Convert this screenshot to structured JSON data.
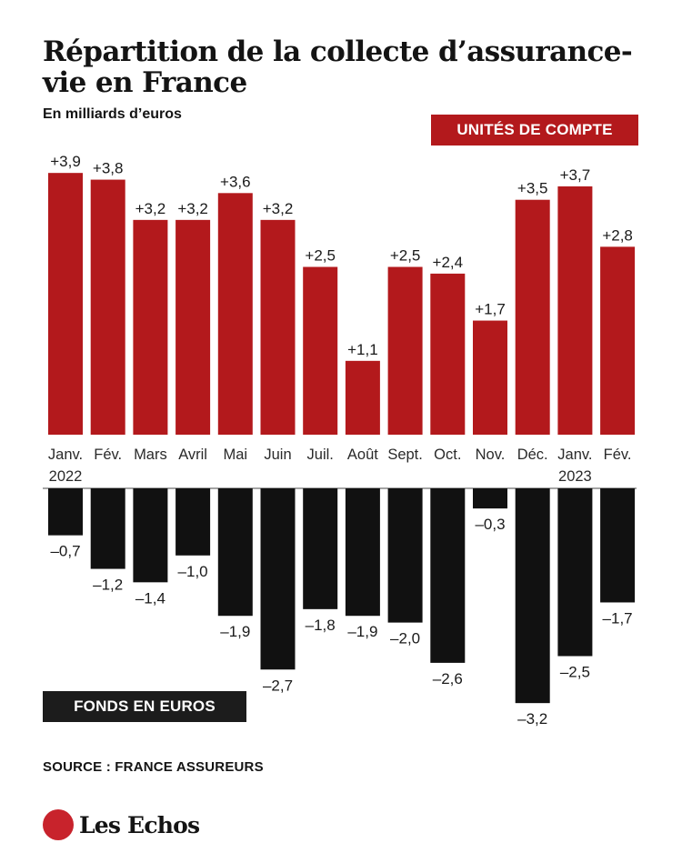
{
  "title": "Répartition de la collecte d’assurance-vie en France",
  "subtitle": "En milliards d’euros",
  "legend": {
    "positive_series_label": "UNITÉS DE COMPTE",
    "negative_series_label": "FONDS EN EUROS"
  },
  "source": "SOURCE : FRANCE ASSUREURS",
  "logo": {
    "icon": "les-echos-emblem-icon",
    "text": "Les Echos"
  },
  "colors": {
    "positive": "#b3191c",
    "negative": "#111111",
    "axis": "#6e6e6e"
  },
  "chart_data": {
    "type": "bar",
    "categories": [
      "Janv.",
      "Fév.",
      "Mars",
      "Avril",
      "Mai",
      "Juin",
      "Juil.",
      "Août",
      "Sept.",
      "Oct.",
      "Nov.",
      "Déc.",
      "Janv.",
      "Fév."
    ],
    "year_labels": [
      "2022",
      "",
      "",
      "",
      "",
      "",
      "",
      "",
      "",
      "",
      "",
      "",
      "2023",
      ""
    ],
    "series": [
      {
        "name": "UNITÉS DE COMPTE",
        "values": [
          3.9,
          3.8,
          3.2,
          3.2,
          3.6,
          3.2,
          2.5,
          1.1,
          2.5,
          2.4,
          1.7,
          3.5,
          3.7,
          2.8
        ],
        "labels": [
          "+3,9",
          "+3,8",
          "+3,2",
          "+3,2",
          "+3,6",
          "+3,2",
          "+2,5",
          "+1,1",
          "+2,5",
          "+2,4",
          "+1,7",
          "+3,5",
          "+3,7",
          "+2,8"
        ]
      },
      {
        "name": "FONDS EN EUROS",
        "values": [
          -0.7,
          -1.2,
          -1.4,
          -1.0,
          -1.9,
          -2.7,
          -1.8,
          -1.9,
          -2.0,
          -2.6,
          -0.3,
          -3.2,
          -2.5,
          -1.7
        ],
        "labels": [
          "–0,7",
          "–1,2",
          "–1,4",
          "–1,0",
          "–1,9",
          "–2,7",
          "–1,8",
          "–1,9",
          "–2,0",
          "–2,6",
          "–0,3",
          "–3,2",
          "–2,5",
          "–1,7"
        ]
      }
    ]
  }
}
